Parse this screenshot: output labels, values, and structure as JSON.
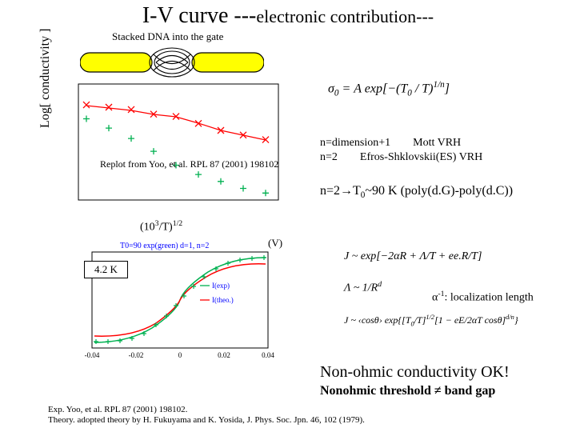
{
  "title": {
    "main": "I-V curve ---",
    "sub": "electronic contribution---"
  },
  "diagram": {
    "stacked_label": "Stacked DNA into the gate",
    "ylabel": "Log[ conductivity ]",
    "bar_color": "#ffff00",
    "outline_color": "#000000"
  },
  "plot1": {
    "type": "scatter-line",
    "series": [
      {
        "marker": "x",
        "color": "#ff0000",
        "y_level": [
          0.82,
          0.8,
          0.78,
          0.74,
          0.72,
          0.66,
          0.6,
          0.56,
          0.52
        ]
      },
      {
        "marker": "+",
        "color": "#00b050",
        "y_level": [
          0.7,
          0.62,
          0.53,
          0.42,
          0.3,
          0.22,
          0.16,
          0.1,
          0.06
        ]
      }
    ],
    "x_range": [
      0,
      1
    ],
    "axis_color": "#000000",
    "caption": "Replot from Yoo, et al. RPL 87 (2001) 198102",
    "xlabel_html": "(10<sup>3</sup>/T)<sup>1/2</sup>"
  },
  "formula1_html": "&sigma;<sub>0</sub> = A exp[&minus;(T<sub>0</sub> / T)<sup>1/n</sup>]",
  "vrh": {
    "line1_html": "n=dimension+1&nbsp;&nbsp;&nbsp;&nbsp;&nbsp;&nbsp;&nbsp;&nbsp;Mott VRH",
    "line2_html": "n=2&nbsp;&nbsp;&nbsp;&nbsp;&nbsp;&nbsp;&nbsp;&nbsp;Efros-Shklovskii(ES) VRH"
  },
  "result_html": "n=2&rarr;T<sub>0</sub>~90 K (poly(d.G)-poly(d.C))",
  "plot2": {
    "type": "line",
    "title_text": "T0=90 exp(green) d=1, n=2",
    "title_color": "#0000ff",
    "series": [
      {
        "color": "#00b050",
        "label": "I(exp)",
        "legend_color": "#0000ff"
      },
      {
        "color": "#ff0000",
        "label": "I(theo.)",
        "legend_color": "#0000ff"
      }
    ],
    "xlim": [
      -0.04,
      0.04
    ],
    "xticks": [
      -0.04,
      -0.02,
      0,
      0.02,
      0.04
    ],
    "axis_color": "#000000",
    "xlabel": "(V)",
    "box_label": "4.2 K"
  },
  "formula2": {
    "line1_html": "J ~ exp[&minus;2&alpha;R + &Lambda;/T + ee.R/T]",
    "line2_html": "&Lambda; ~ 1/R<sup>d</sup>",
    "loc_len_html": "&alpha;<sup>-1</sup>: localization length",
    "line3_html": "J ~ &#8249;cos&theta;&#8250; exp{[T<sub>0</sub>/T]<sup>1/2</sup>[1 &minus; eE/2&alpha;T cos&theta;]<sup>d/n</sup>}"
  },
  "nonohmic": {
    "line1": "Non-ohmic conductivity OK!",
    "line2_html": "Nonohmic threshold &ne; band gap"
  },
  "refs": {
    "line1": "Exp. Yoo, et al. RPL 87 (2001) 198102.",
    "line2": "Theory. adopted theory by H. Fukuyama and K. Yosida, J. Phys. Soc. Jpn. 46, 102 (1979)."
  },
  "colors": {
    "red": "#ff0000",
    "green": "#00b050",
    "blue": "#0000ff",
    "yellow": "#ffff00",
    "black": "#000000",
    "white": "#ffffff"
  }
}
